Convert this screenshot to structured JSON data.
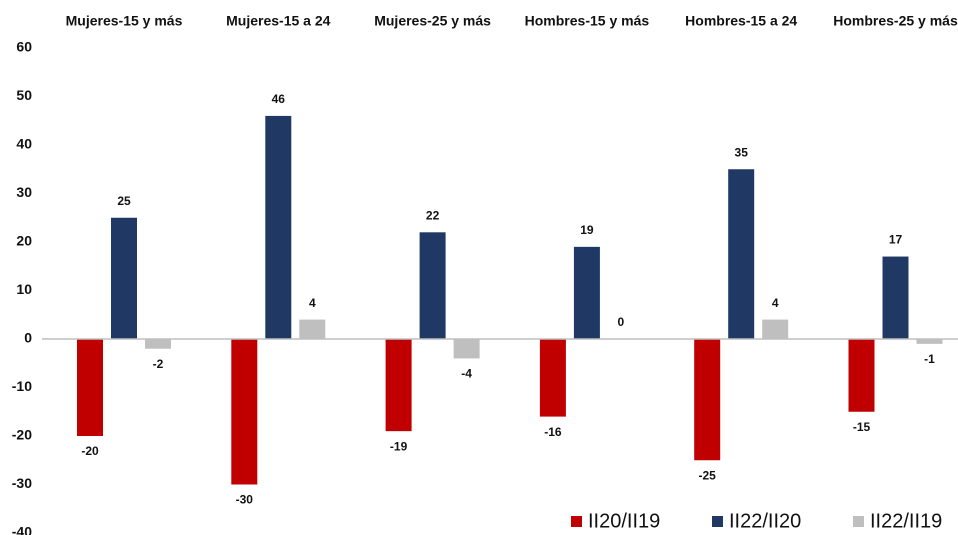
{
  "chart_data": {
    "type": "bar",
    "categories": [
      "Mujeres-15 y más",
      "Mujeres-15 a 24",
      "Mujeres-25 y más",
      "Hombres-15 y más",
      "Hombres-15 a 24",
      "Hombres-25 y más"
    ],
    "series": [
      {
        "name": "II20/II19",
        "color": "#c00000",
        "values": [
          -20,
          -30,
          -19,
          -16,
          -25,
          -15
        ]
      },
      {
        "name": "II22/II20",
        "color": "#1f3864",
        "values": [
          25,
          46,
          22,
          19,
          35,
          17
        ]
      },
      {
        "name": "II22/II19",
        "color": "#bfbfbf",
        "values": [
          -2,
          4,
          -4,
          0,
          4,
          -1
        ]
      }
    ],
    "ylim": [
      -40,
      60
    ],
    "yticks": [
      -40,
      -30,
      -20,
      -10,
      0,
      10,
      20,
      30,
      40,
      50,
      60
    ],
    "grid": false,
    "legend": "bottom-right"
  }
}
